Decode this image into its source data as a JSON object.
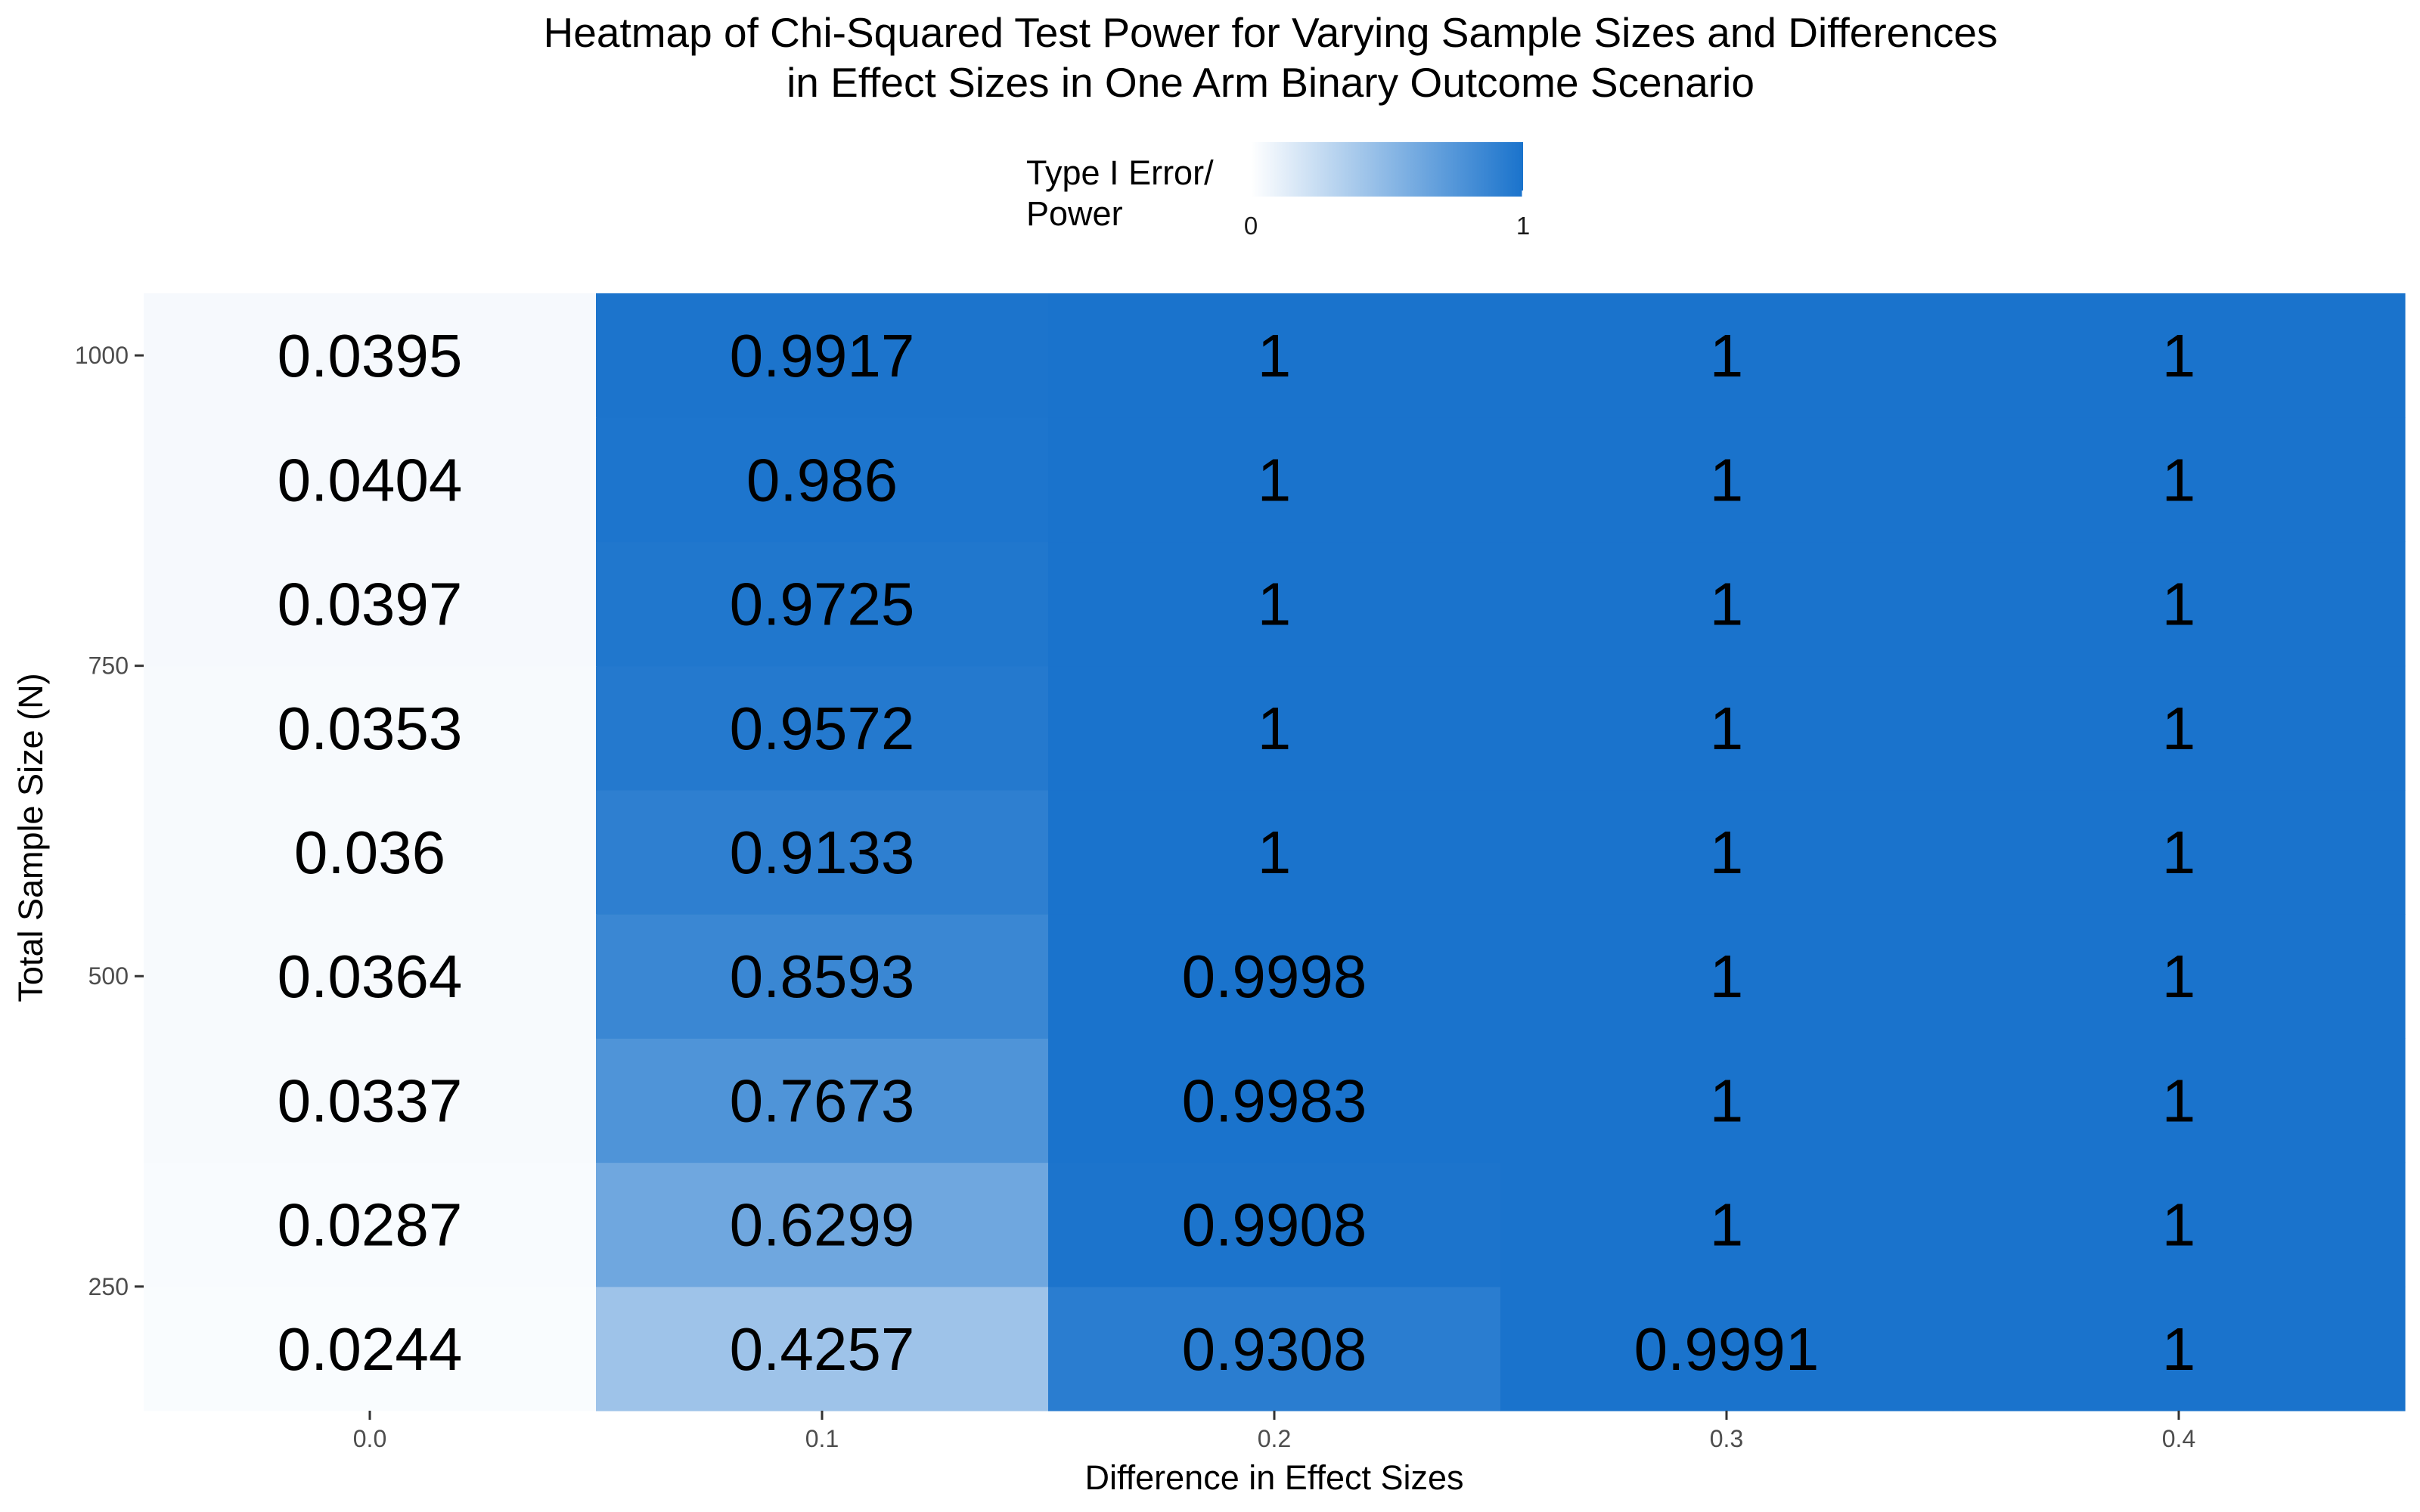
{
  "chart_data": {
    "type": "heatmap",
    "title_lines": [
      "Heatmap of Chi-Squared Test Power for Varying Sample Sizes and Differences",
      "in Effect Sizes in One Arm Binary Outcome Scenario"
    ],
    "xlabel": "Difference in Effect Sizes",
    "ylabel": "Total Sample Size (N)",
    "x_categories": [
      0.0,
      0.1,
      0.2,
      0.3,
      0.4
    ],
    "x_tick_labels": [
      "0.0",
      "0.1",
      "0.2",
      "0.3",
      "0.4"
    ],
    "y_values": [
      200,
      300,
      400,
      500,
      600,
      700,
      800,
      900,
      1000
    ],
    "y_ticks": [
      250,
      500,
      750,
      1000
    ],
    "y_tick_labels": [
      "250",
      "500",
      "750",
      "1000"
    ],
    "xlim": [
      -0.05,
      0.45
    ],
    "ylim": [
      150,
      1050
    ],
    "values": [
      [
        0.0244,
        0.4257,
        0.9308,
        0.9991,
        1
      ],
      [
        0.0287,
        0.6299,
        0.9908,
        1,
        1
      ],
      [
        0.0337,
        0.7673,
        0.9983,
        1,
        1
      ],
      [
        0.0364,
        0.8593,
        0.9998,
        1,
        1
      ],
      [
        0.036,
        0.9133,
        1,
        1,
        1
      ],
      [
        0.0353,
        0.9572,
        1,
        1,
        1
      ],
      [
        0.0397,
        0.9725,
        1,
        1,
        1
      ],
      [
        0.0404,
        0.986,
        1,
        1,
        1
      ],
      [
        0.0395,
        0.9917,
        1,
        1,
        1
      ]
    ],
    "legend": {
      "title_lines": [
        "Type I Error/",
        "Power"
      ],
      "min_label": "0",
      "max_label": "1",
      "low_color": "#ffffff",
      "high_color": "#1a73cc",
      "placement": "top"
    },
    "grid": true,
    "panel_background": "#ebebeb",
    "grid_color": "#ffffff"
  }
}
